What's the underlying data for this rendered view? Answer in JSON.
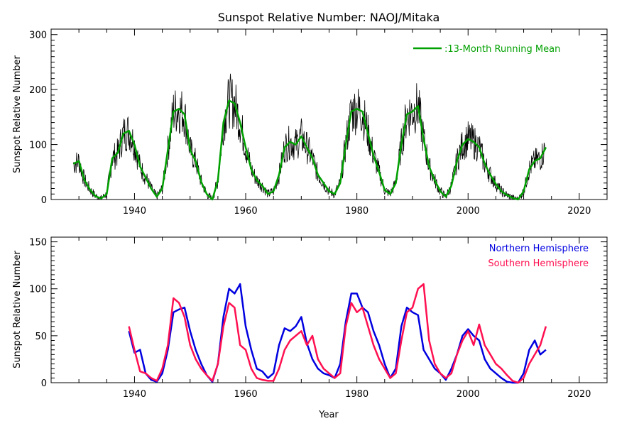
{
  "chart_data": [
    {
      "type": "line",
      "title": "Sunspot Relative Number: NAOJ/Mitaka",
      "xlabel": "",
      "ylabel": "Sunspot Relative Number",
      "xlim": [
        1925,
        2025
      ],
      "ylim": [
        0,
        310
      ],
      "xticks": [
        1940,
        1960,
        1980,
        2000,
        2020
      ],
      "yticks": [
        0,
        100,
        200,
        300
      ],
      "legend": {
        "position": "top-right",
        "entries": [
          ":13-Month Running Mean"
        ]
      },
      "grid": false,
      "colors": {
        "monthly": "#000000",
        "mean": "#00a000"
      },
      "series": [
        {
          "name": ":13-Month Running Mean",
          "x": [
            1929.0,
            1930.0,
            1931.0,
            1932.0,
            1933.0,
            1934.0,
            1935.0,
            1936.0,
            1937.0,
            1938.0,
            1939.0,
            1940.0,
            1941.0,
            1942.0,
            1943.0,
            1944.0,
            1945.0,
            1946.0,
            1947.0,
            1948.0,
            1949.0,
            1950.0,
            1951.0,
            1952.0,
            1953.0,
            1954.0,
            1955.0,
            1956.0,
            1957.0,
            1958.0,
            1959.0,
            1960.0,
            1961.0,
            1962.0,
            1963.0,
            1964.0,
            1965.0,
            1966.0,
            1967.0,
            1968.0,
            1969.0,
            1970.0,
            1971.0,
            1972.0,
            1973.0,
            1974.0,
            1975.0,
            1976.0,
            1977.0,
            1978.0,
            1979.0,
            1980.0,
            1981.0,
            1982.0,
            1983.0,
            1984.0,
            1985.0,
            1986.0,
            1987.0,
            1988.0,
            1989.0,
            1990.0,
            1991.0,
            1992.0,
            1993.0,
            1994.0,
            1995.0,
            1996.0,
            1997.0,
            1998.0,
            1999.0,
            2000.0,
            2001.0,
            2002.0,
            2003.0,
            2004.0,
            2005.0,
            2006.0,
            2007.0,
            2008.0,
            2009.0,
            2010.0,
            2011.0,
            2012.0,
            2013.0,
            2014.0
          ],
          "y": [
            65,
            70,
            35,
            18,
            6,
            2,
            10,
            75,
            85,
            120,
            125,
            100,
            60,
            40,
            20,
            5,
            20,
            90,
            160,
            165,
            155,
            90,
            70,
            32,
            10,
            0,
            35,
            140,
            180,
            175,
            140,
            95,
            55,
            35,
            25,
            10,
            15,
            45,
            95,
            105,
            100,
            115,
            95,
            75,
            45,
            30,
            15,
            10,
            30,
            100,
            160,
            165,
            160,
            120,
            80,
            50,
            17,
            10,
            30,
            100,
            155,
            160,
            170,
            110,
            60,
            35,
            15,
            5,
            25,
            70,
            100,
            110,
            105,
            95,
            65,
            45,
            28,
            15,
            8,
            3,
            0,
            15,
            55,
            70,
            75,
            95
          ]
        }
      ]
    },
    {
      "type": "line",
      "title": "",
      "xlabel": "Year",
      "ylabel": "Sunspot Relative Number",
      "xlim": [
        1925,
        2025
      ],
      "ylim": [
        0,
        155
      ],
      "xticks": [
        1940,
        1960,
        1980,
        2000,
        2020
      ],
      "yticks": [
        0,
        50,
        100,
        150
      ],
      "legend": {
        "position": "top-right",
        "entries": [
          "Northern Hemisphere",
          "Southern Hemisphere"
        ]
      },
      "grid": false,
      "series": [
        {
          "name": "Northern Hemisphere",
          "color": "#0000e0",
          "x": [
            1939.0,
            1940.0,
            1941.0,
            1942.0,
            1943.0,
            1944.0,
            1945.0,
            1946.0,
            1947.0,
            1948.0,
            1949.0,
            1950.0,
            1951.0,
            1952.0,
            1953.0,
            1954.0,
            1955.0,
            1956.0,
            1957.0,
            1958.0,
            1959.0,
            1960.0,
            1961.0,
            1962.0,
            1963.0,
            1964.0,
            1965.0,
            1966.0,
            1967.0,
            1968.0,
            1969.0,
            1970.0,
            1971.0,
            1972.0,
            1973.0,
            1974.0,
            1975.0,
            1976.0,
            1977.0,
            1978.0,
            1979.0,
            1980.0,
            1981.0,
            1982.0,
            1983.0,
            1984.0,
            1985.0,
            1986.0,
            1987.0,
            1988.0,
            1989.0,
            1990.0,
            1991.0,
            1992.0,
            1993.0,
            1994.0,
            1995.0,
            1996.0,
            1997.0,
            1998.0,
            1999.0,
            2000.0,
            2001.0,
            2002.0,
            2003.0,
            2004.0,
            2005.0,
            2006.0,
            2007.0,
            2008.0,
            2009.0,
            2010.0,
            2011.0,
            2012.0,
            2013.0,
            2014.0
          ],
          "y": [
            55,
            32,
            35,
            10,
            3,
            1,
            10,
            35,
            75,
            78,
            80,
            55,
            35,
            20,
            8,
            1,
            20,
            70,
            100,
            95,
            105,
            60,
            35,
            15,
            12,
            5,
            10,
            40,
            58,
            55,
            60,
            70,
            42,
            25,
            15,
            10,
            8,
            5,
            20,
            65,
            95,
            95,
            80,
            75,
            55,
            40,
            20,
            5,
            15,
            60,
            80,
            75,
            72,
            35,
            25,
            15,
            10,
            3,
            15,
            30,
            50,
            57,
            50,
            45,
            25,
            15,
            10,
            5,
            1,
            0,
            0,
            10,
            35,
            45,
            30,
            35
          ]
        },
        {
          "name": "Southern Hemisphere",
          "color": "#ff1050",
          "x": [
            1939.0,
            1940.0,
            1941.0,
            1942.0,
            1943.0,
            1944.0,
            1945.0,
            1946.0,
            1947.0,
            1948.0,
            1949.0,
            1950.0,
            1951.0,
            1952.0,
            1953.0,
            1954.0,
            1955.0,
            1956.0,
            1957.0,
            1958.0,
            1959.0,
            1960.0,
            1961.0,
            1962.0,
            1963.0,
            1964.0,
            1965.0,
            1966.0,
            1967.0,
            1968.0,
            1969.0,
            1970.0,
            1971.0,
            1972.0,
            1973.0,
            1974.0,
            1975.0,
            1976.0,
            1977.0,
            1978.0,
            1979.0,
            1980.0,
            1981.0,
            1982.0,
            1983.0,
            1984.0,
            1985.0,
            1986.0,
            1987.0,
            1988.0,
            1989.0,
            1990.0,
            1991.0,
            1992.0,
            1993.0,
            1994.0,
            1995.0,
            1996.0,
            1997.0,
            1998.0,
            1999.0,
            2000.0,
            2001.0,
            2002.0,
            2003.0,
            2004.0,
            2005.0,
            2006.0,
            2007.0,
            2008.0,
            2009.0,
            2010.0,
            2011.0,
            2012.0,
            2013.0,
            2014.0
          ],
          "y": [
            60,
            35,
            12,
            10,
            5,
            2,
            15,
            40,
            90,
            85,
            70,
            40,
            25,
            15,
            8,
            2,
            20,
            60,
            85,
            80,
            40,
            35,
            15,
            5,
            3,
            2,
            2,
            15,
            35,
            45,
            50,
            55,
            40,
            50,
            25,
            15,
            10,
            5,
            10,
            60,
            85,
            75,
            80,
            60,
            40,
            25,
            15,
            5,
            10,
            45,
            75,
            80,
            100,
            105,
            45,
            20,
            10,
            5,
            10,
            30,
            45,
            55,
            40,
            62,
            40,
            30,
            20,
            15,
            8,
            2,
            0,
            5,
            20,
            30,
            40,
            60
          ]
        }
      ]
    }
  ]
}
